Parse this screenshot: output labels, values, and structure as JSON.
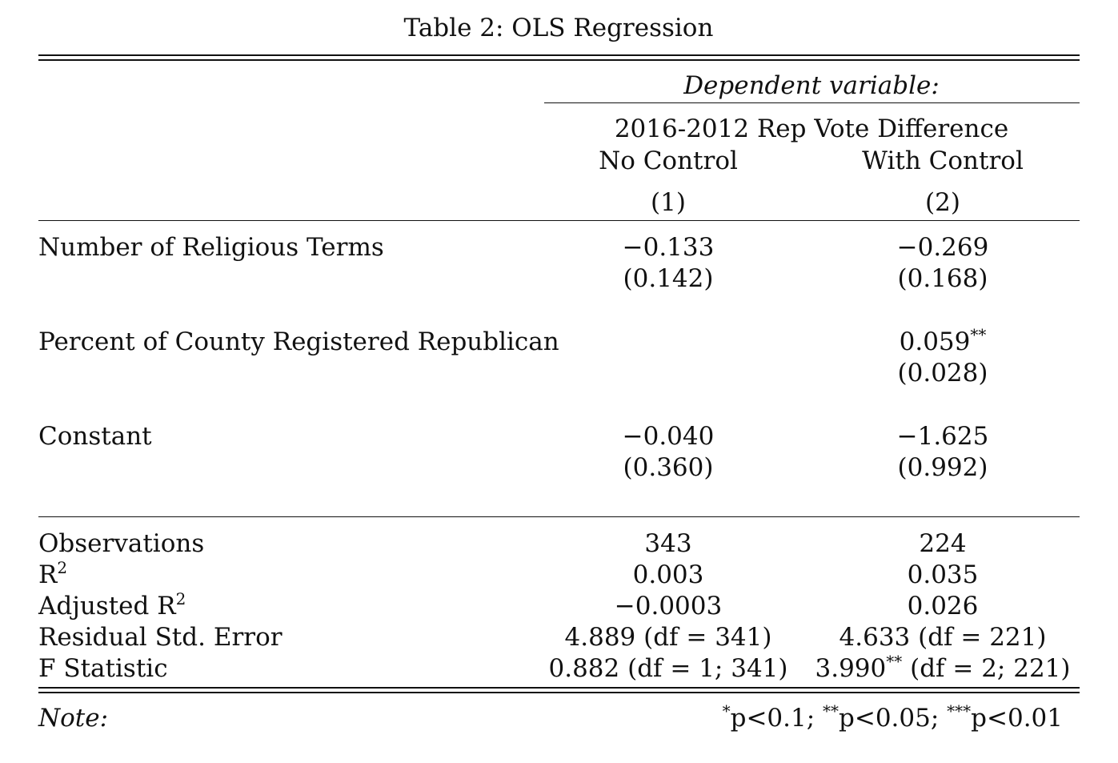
{
  "title": "Table 2: OLS Regression",
  "header": {
    "dependent_variable_label": "Dependent variable:",
    "dependent_variable": "2016-2012 Rep Vote Difference",
    "col1_name": "No Control",
    "col2_name": "With Control",
    "col1_num": "(1)",
    "col2_num": "(2)"
  },
  "rows": [
    {
      "label": "Number of Religious Terms",
      "c1": "−0.133",
      "c1_se": "(0.142)",
      "c2": "−0.269",
      "c2_se": "(0.168)"
    },
    {
      "label": "Percent of County Registered Republican",
      "c1": "",
      "c1_se": "",
      "c2": "0.059",
      "c2_stars": "**",
      "c2_se": "(0.028)"
    },
    {
      "label": "Constant",
      "c1": "−0.040",
      "c1_se": "(0.360)",
      "c2": "−1.625",
      "c2_se": "(0.992)"
    }
  ],
  "stats": {
    "observations": {
      "label": "Observations",
      "c1": "343",
      "c2": "224"
    },
    "r2": {
      "label": "R",
      "sup": "2",
      "c1": "0.003",
      "c2": "0.035"
    },
    "adj_r2": {
      "label": "Adjusted R",
      "sup": "2",
      "c1": "−0.0003",
      "c2": "0.026"
    },
    "rse": {
      "label": "Residual Std. Error",
      "c1": "4.889 (df = 341)",
      "c2": "4.633 (df = 221)"
    },
    "fstat": {
      "label": "F Statistic",
      "c1": "0.882 (df = 1; 341)",
      "c2_value": "3.990",
      "c2_stars": "**",
      "c2_rest": " (df = 2; 221)"
    }
  },
  "note": {
    "label": "Note:",
    "s1": "*",
    "t1": "p<0.1; ",
    "s2": "**",
    "t2": "p<0.05; ",
    "s3": "***",
    "t3": "p<0.01"
  }
}
